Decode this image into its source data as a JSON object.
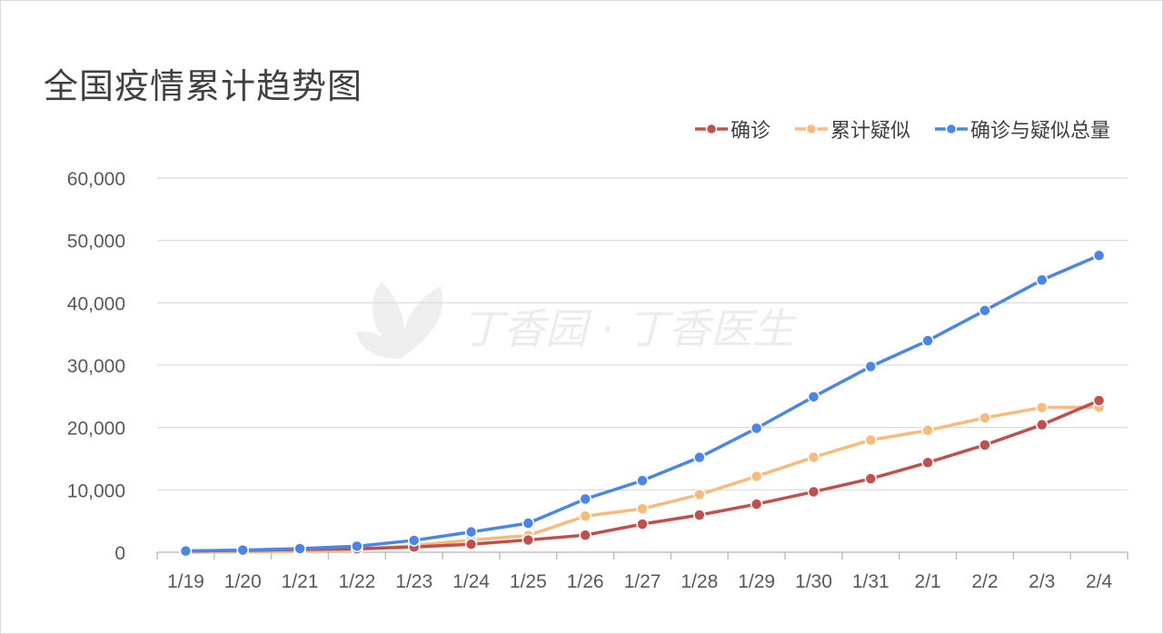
{
  "title": "全国疫情累计趋势图",
  "watermark": "丁香园 · 丁香医生",
  "chart_data": {
    "type": "line",
    "title": "全国疫情累计趋势图",
    "xlabel": "",
    "ylabel": "",
    "categories": [
      "1/19",
      "1/20",
      "1/21",
      "1/22",
      "1/23",
      "1/24",
      "1/25",
      "1/26",
      "1/27",
      "1/28",
      "1/29",
      "1/30",
      "1/31",
      "2/1",
      "2/2",
      "2/3",
      "2/4"
    ],
    "ylim": [
      0,
      60000
    ],
    "yticks": [
      0,
      10000,
      20000,
      30000,
      40000,
      50000,
      60000
    ],
    "ytick_labels": [
      "0",
      "10,000",
      "20,000",
      "30,000",
      "40,000",
      "50,000",
      "60,000"
    ],
    "grid": true,
    "legend_position": "top-right",
    "series": [
      {
        "name": "确诊",
        "color": "#c0504d",
        "values": [
          200,
          300,
          440,
          571,
          830,
          1287,
          1975,
          2744,
          4515,
          5974,
          7711,
          9692,
          11791,
          14380,
          17205,
          20438,
          24324
        ]
      },
      {
        "name": "累计疑似",
        "color": "#f7bb7d",
        "values": [
          0,
          50,
          150,
          400,
          1072,
          1965,
          2684,
          5794,
          6973,
          9239,
          12167,
          15238,
          17988,
          19544,
          21558,
          23214,
          23260
        ]
      },
      {
        "name": "确诊与疑似总量",
        "color": "#4a86e8",
        "values": [
          200,
          350,
          590,
          971,
          1902,
          3252,
          4659,
          8538,
          11488,
          15213,
          19878,
          24930,
          29779,
          33924,
          38763,
          43652,
          47584
        ]
      }
    ]
  }
}
